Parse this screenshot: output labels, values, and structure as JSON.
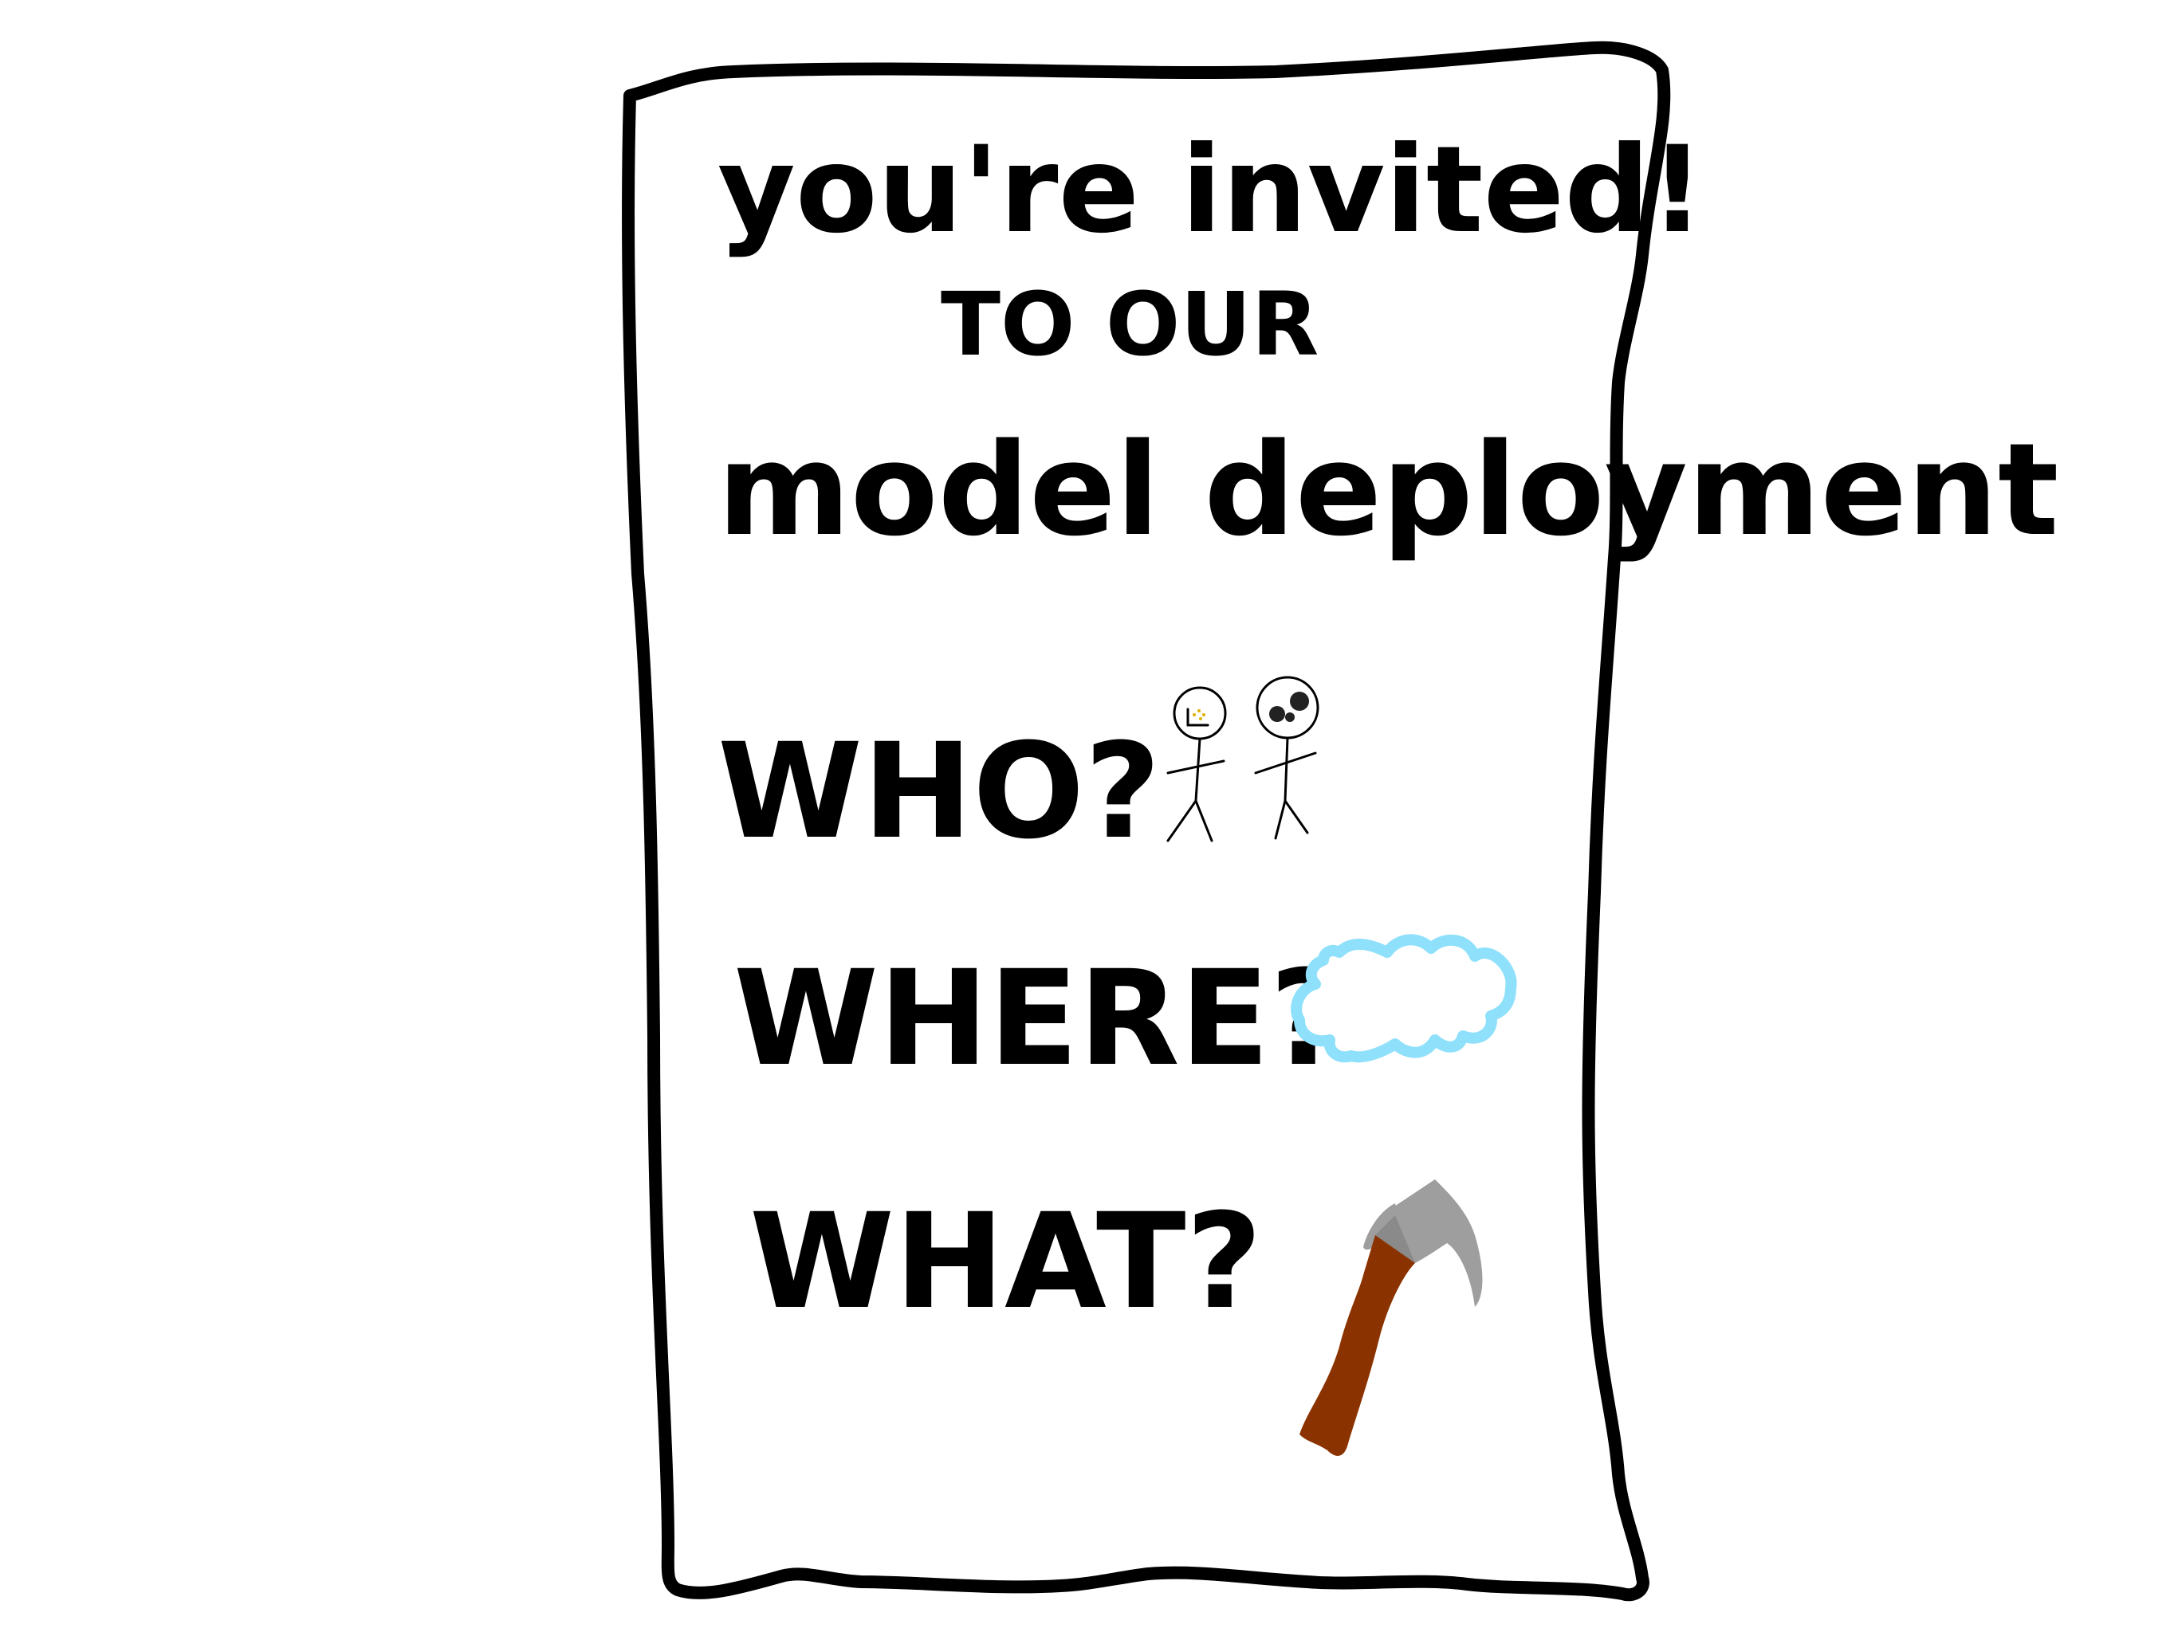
{
  "invitation": {
    "line1": "you're invited!",
    "line2": "TO OUR",
    "line3": "model deployment",
    "who_label": "WHO?",
    "where_label": "WHERE?",
    "what_label": "WHAT?"
  },
  "illustrations": {
    "who": "stick-figures-icon",
    "where": "cloud-icon",
    "what": "hammer-icon"
  },
  "colors": {
    "ink": "#000000",
    "cloud": "#8ee0fb",
    "hammer_head": "#9e9e9e",
    "hammer_handle": "#8b3300",
    "chart_dots": "#e0b000"
  }
}
